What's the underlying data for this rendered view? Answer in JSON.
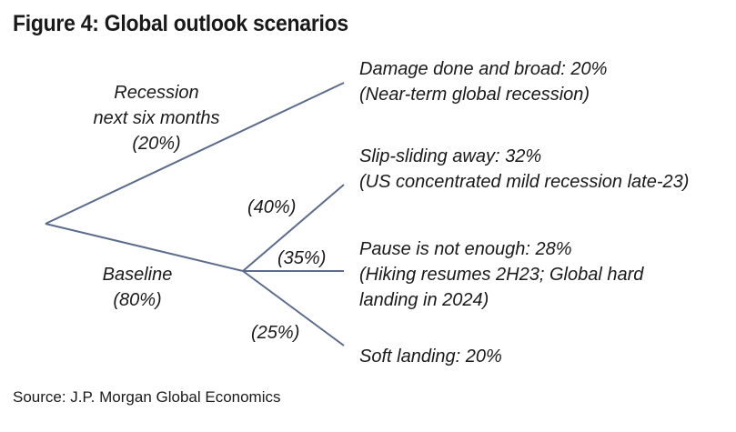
{
  "title": "Figure 4: Global outlook scenarios",
  "source": "Source: J.P. Morgan Global Economics",
  "branches": {
    "recession": {
      "line1": "Recession",
      "line2": "next six months",
      "prob": "(20%)"
    },
    "baseline": {
      "line1": "Baseline",
      "prob": "(80%)"
    }
  },
  "sub_branches": {
    "slip": "(40%)",
    "pause": "(35%)",
    "soft": "(25%)"
  },
  "outcomes": {
    "damage": {
      "line1": "Damage done and broad: 20%",
      "line2": "(Near-term global recession)"
    },
    "slip": {
      "line1": "Slip-sliding away: 32%",
      "line2": "(US concentrated mild recession late-23)"
    },
    "pause": {
      "line1": "Pause is not enough: 28%",
      "line2": "(Hiking resumes 2H23; Global hard",
      "line3": "landing in 2024)"
    },
    "soft": {
      "line1": "Soft landing: 20%"
    }
  },
  "colors": {
    "line": "#5b6b8c",
    "text": "#1a1a1a"
  }
}
